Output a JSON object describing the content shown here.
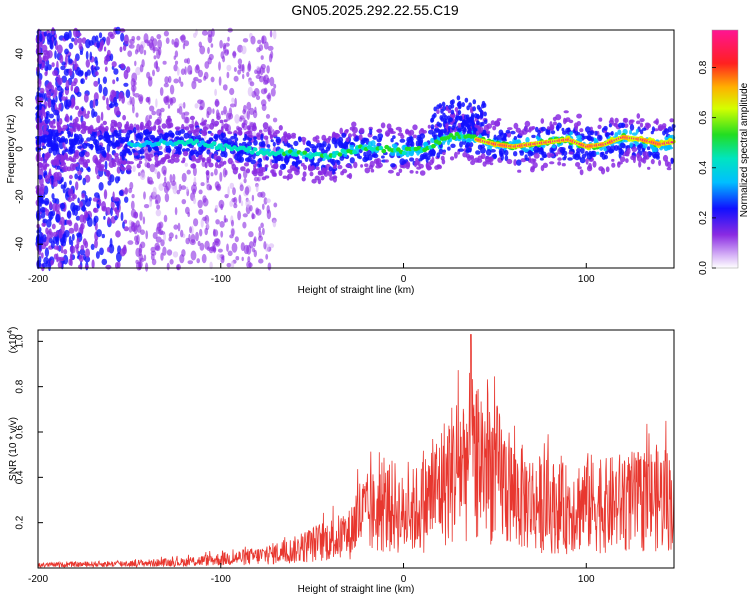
{
  "title": "GN05.2025.292.22.55.C19",
  "chart_data": [
    {
      "type": "heatmap",
      "title": "GN05.2025.292.22.55.C19",
      "xlabel": "Height of straight line (km)",
      "ylabel": "Frequency (Hz)",
      "xlim": [
        -200,
        148
      ],
      "ylim": [
        -50,
        50
      ],
      "x_ticks": [
        -200,
        -100,
        0,
        100
      ],
      "x_tick_labels": [
        "-200",
        "-100",
        "0",
        "100"
      ],
      "y_ticks": [
        -40,
        -20,
        0,
        20,
        40
      ],
      "y_tick_labels": [
        "-40",
        "-20",
        "0",
        "20",
        "40"
      ],
      "colorbar": {
        "label": "Normalized spectral amplitude",
        "range": [
          0,
          0.95
        ],
        "ticks": [
          0.0,
          0.2,
          0.4,
          0.6,
          0.8
        ],
        "tick_labels": [
          "0.0",
          "0.2",
          "0.4",
          "0.6",
          "0.8"
        ]
      },
      "ridge_frequency_trace": {
        "x": [
          -200,
          -150,
          -120,
          -100,
          -80,
          -60,
          -40,
          -20,
          0,
          10,
          20,
          30,
          40,
          50,
          60,
          70,
          80,
          90,
          100,
          110,
          120,
          130,
          140,
          148
        ],
        "y": [
          2,
          2,
          3,
          1,
          -1,
          -2,
          -3,
          1,
          -1,
          0,
          3,
          6,
          4,
          2,
          1,
          2,
          3,
          4,
          1,
          2,
          5,
          4,
          2,
          3
        ]
      }
    },
    {
      "type": "line",
      "xlabel": "Height of straight line (km)",
      "ylabel": "SNR (10 * v/v)",
      "y_multiplier_label": "(x10",
      "y_multiplier_exp": "4",
      "y_multiplier_close": ")",
      "xlim": [
        -200,
        148
      ],
      "ylim": [
        0,
        1.05
      ],
      "x_ticks": [
        -200,
        -100,
        0,
        100
      ],
      "x_tick_labels": [
        "-200",
        "-100",
        "0",
        "100"
      ],
      "y_ticks": [
        0.2,
        0.4,
        0.6,
        0.8,
        1.0
      ],
      "y_tick_labels": [
        "0.2",
        "0.4",
        "0.6",
        "0.8",
        "1.0"
      ],
      "color": "#e8372f",
      "envelope": {
        "x": [
          -200,
          -150,
          -120,
          -100,
          -80,
          -60,
          -45,
          -30,
          -25,
          -15,
          -5,
          0,
          10,
          20,
          30,
          40,
          50,
          60,
          70,
          80,
          90,
          100,
          110,
          120,
          130,
          140,
          148
        ],
        "y": [
          0.02,
          0.03,
          0.04,
          0.06,
          0.08,
          0.12,
          0.18,
          0.22,
          0.35,
          0.38,
          0.42,
          0.35,
          0.42,
          0.55,
          0.7,
          0.78,
          0.65,
          0.5,
          0.45,
          0.42,
          0.4,
          0.45,
          0.42,
          0.45,
          0.45,
          0.48,
          0.45
        ]
      }
    }
  ]
}
